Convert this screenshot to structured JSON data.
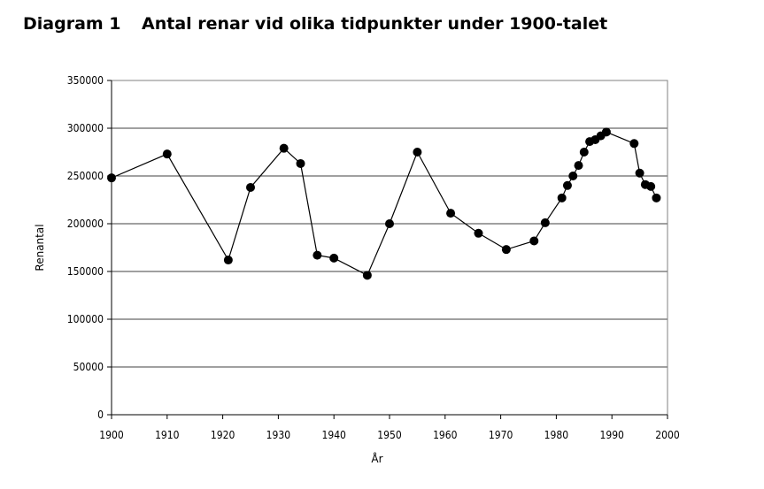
{
  "header": {
    "diagram_label": "Diagram 1",
    "title": "Antal renar vid olika tidpunkter under 1900-talet"
  },
  "chart_data": {
    "type": "line",
    "title": "Antal renar vid olika tidpunkter under 1900-talet",
    "xlabel": "År",
    "ylabel": "Renantal",
    "xlim": [
      1900,
      2000
    ],
    "ylim": [
      0,
      350000
    ],
    "x_ticks": [
      1900,
      1910,
      1920,
      1930,
      1940,
      1950,
      1960,
      1970,
      1980,
      1990,
      2000
    ],
    "y_ticks": [
      0,
      50000,
      100000,
      150000,
      200000,
      250000,
      300000,
      350000
    ],
    "grid": "horizontal",
    "colors": {
      "line": "#000000",
      "marker": "#000000",
      "grid": "#000000",
      "frame": "#808080"
    },
    "series": [
      {
        "points": [
          [
            1900,
            248000
          ],
          [
            1910,
            273000
          ],
          [
            1921,
            162000
          ],
          [
            1925,
            238000
          ],
          [
            1931,
            279000
          ],
          [
            1934,
            263000
          ],
          [
            1937,
            167000
          ],
          [
            1940,
            164000
          ],
          [
            1946,
            146000
          ],
          [
            1950,
            200000
          ],
          [
            1955,
            275000
          ],
          [
            1961,
            211000
          ],
          [
            1966,
            190000
          ],
          [
            1971,
            173000
          ],
          [
            1976,
            182000
          ],
          [
            1978,
            201000
          ],
          [
            1981,
            227000
          ],
          [
            1982,
            240000
          ],
          [
            1983,
            250000
          ],
          [
            1984,
            261000
          ],
          [
            1985,
            275000
          ],
          [
            1986,
            286000
          ],
          [
            1987,
            288000
          ],
          [
            1988,
            292000
          ],
          [
            1989,
            296000
          ],
          [
            1994,
            284000
          ],
          [
            1995,
            253000
          ],
          [
            1996,
            241000
          ],
          [
            1997,
            239000
          ],
          [
            1998,
            227000
          ]
        ]
      }
    ]
  }
}
